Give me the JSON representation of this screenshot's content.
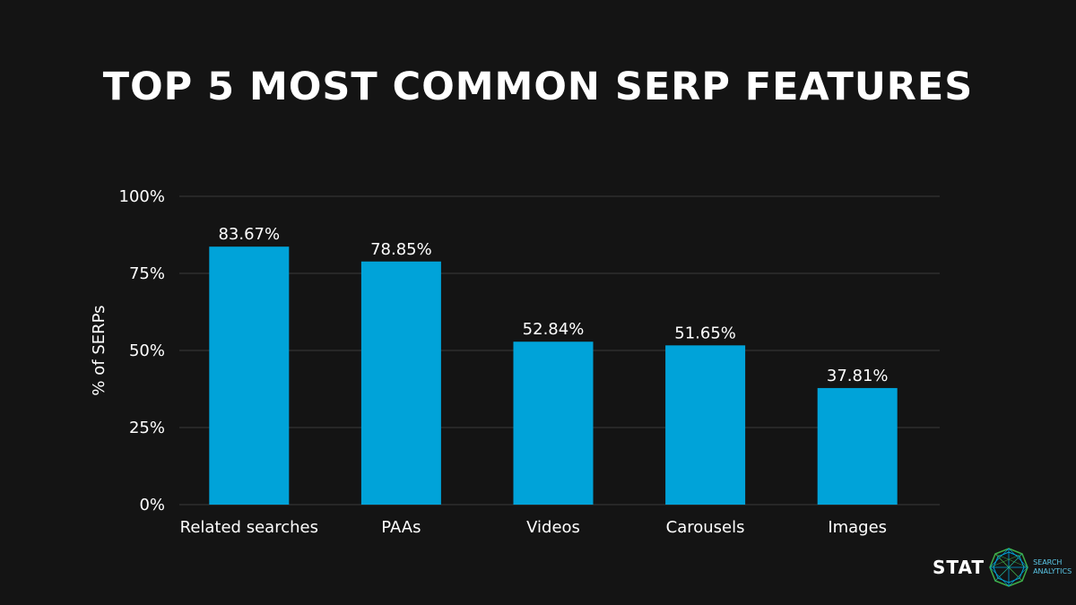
{
  "colors": {
    "background": "#141414",
    "bar": "#00a3d9",
    "grid": "#3a3a3a",
    "text": "#ffffff",
    "logo_accent": "#5bc8e8",
    "logo_green": "#3fae49"
  },
  "brand": {
    "word": "STAT",
    "sub_line1": "SEARCH",
    "sub_line2": "ANALYTICS",
    "icon": "network-globe-icon"
  },
  "chart_data": {
    "type": "bar",
    "title": "TOP 5 MOST COMMON SERP FEATURES",
    "xlabel": "",
    "ylabel": "% of SERPs",
    "categories": [
      "Related searches",
      "PAAs",
      "Videos",
      "Carousels",
      "Images"
    ],
    "values": [
      83.67,
      78.85,
      52.84,
      51.65,
      37.81
    ],
    "data_labels": [
      "83.67%",
      "78.85%",
      "52.84%",
      "51.65%",
      "37.81%"
    ],
    "ylim": [
      0,
      100
    ],
    "yticks": [
      0,
      25,
      50,
      75,
      100
    ],
    "ytick_labels": [
      "0%",
      "25%",
      "50%",
      "75%",
      "100%"
    ],
    "grid": true,
    "legend": "none"
  }
}
